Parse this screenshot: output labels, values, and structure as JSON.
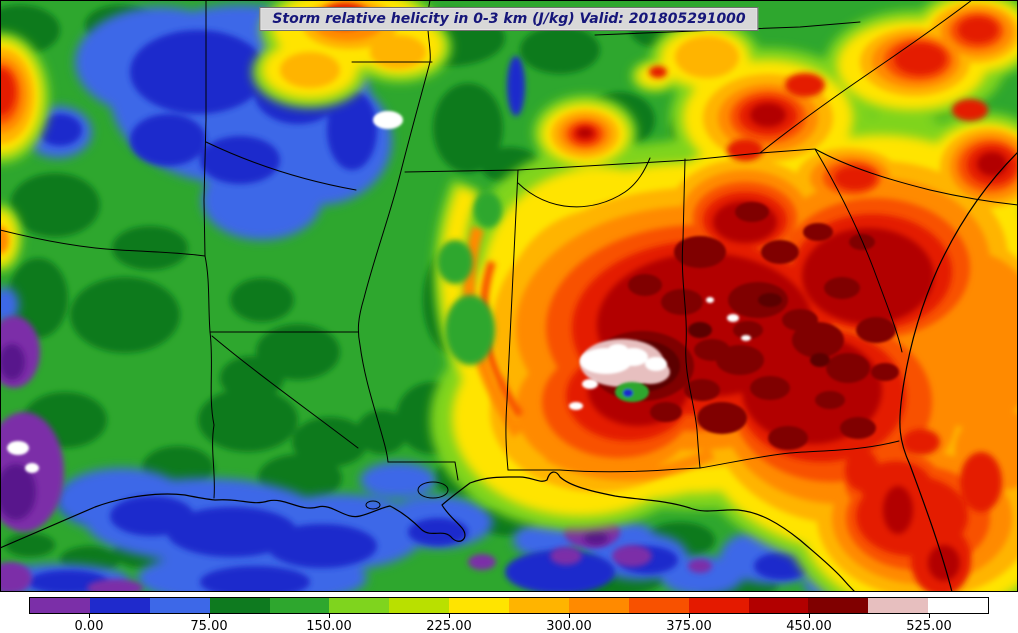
{
  "title": "Storm relative helicity in 0-3 km (J/kg) Valid: 201805291000",
  "map": {
    "description": "Filled contour map of 0-3 km storm relative helicity over the southeastern United States with state borders, coastline and rivers; a tropical-cyclone circulation with extreme helicity (white core surrounded by dark red) is centered over southern Alabama/Georgia."
  },
  "colorbar": {
    "orientation": "horizontal",
    "position": "bottom",
    "min": -37.5,
    "max": 562.5,
    "interval": 37.5,
    "colors": [
      "#7B2FA8",
      "#1F2ACC",
      "#3D68E8",
      "#0E7A1F",
      "#2EA72E",
      "#7FD41E",
      "#B9E000",
      "#FFE400",
      "#FFB400",
      "#FF8A00",
      "#F85100",
      "#E41A00",
      "#B20000",
      "#800000",
      "#E7BFBF",
      "#FFFFFF"
    ],
    "ticks": [
      {
        "value": 0,
        "label": "0.00"
      },
      {
        "value": 75,
        "label": "75.00"
      },
      {
        "value": 150,
        "label": "150.00"
      },
      {
        "value": 225,
        "label": "225.00"
      },
      {
        "value": 300,
        "label": "300.00"
      },
      {
        "value": 375,
        "label": "375.00"
      },
      {
        "value": 450,
        "label": "450.00"
      },
      {
        "value": 525,
        "label": "525.00"
      }
    ]
  },
  "chart_data": {
    "type": "heatmap",
    "title": "Storm relative helicity in 0-3 km (J/kg) Valid: 201805291000",
    "variable": "Storm relative helicity in 0-3 km",
    "units": "J/kg",
    "valid": "201805291000",
    "value_range": [
      -37.5,
      562.5
    ],
    "contour_interval": 37.5,
    "colorbar_tick_values": [
      0,
      75,
      150,
      225,
      300,
      375,
      450,
      525
    ],
    "colorbar_tick_labels": [
      "0.00",
      "75.00",
      "150.00",
      "225.00",
      "300.00",
      "375.00",
      "450.00",
      "525.00"
    ],
    "palette": [
      "#7B2FA8",
      "#1F2ACC",
      "#3D68E8",
      "#0E7A1F",
      "#2EA72E",
      "#7FD41E",
      "#B9E000",
      "#FFE400",
      "#FFB400",
      "#FF8A00",
      "#F85100",
      "#E41A00",
      "#B20000",
      "#800000",
      "#E7BFBF",
      "#FFFFFF"
    ],
    "legend_position": "bottom"
  }
}
